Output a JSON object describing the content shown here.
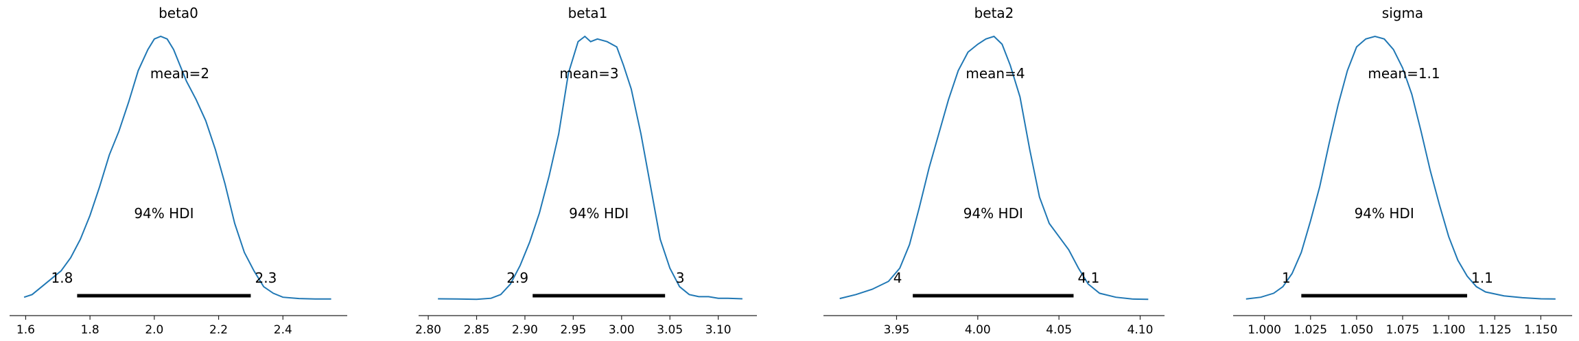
{
  "chart_data": [
    {
      "type": "line",
      "title": "beta0",
      "mean_label": "mean=2",
      "hdi_label": "94% HDI",
      "hdi_low_label": "1.8",
      "hdi_high_label": "2.3",
      "hdi": [
        1.76,
        2.3
      ],
      "xlim": [
        1.55,
        2.6
      ],
      "ticks": [
        1.6,
        1.8,
        2.0,
        2.2,
        2.4
      ],
      "tick_labels": [
        "1.6",
        "1.8",
        "2.0",
        "2.2",
        "2.4"
      ],
      "series": [
        {
          "x": [
            1.595,
            1.62,
            1.65,
            1.68,
            1.71,
            1.74,
            1.77,
            1.8,
            1.83,
            1.86,
            1.89,
            1.92,
            1.95,
            1.98,
            2.0,
            2.02,
            2.04,
            2.06,
            2.08,
            2.1,
            2.13,
            2.16,
            2.19,
            2.22,
            2.25,
            2.28,
            2.31,
            2.34,
            2.37,
            2.4,
            2.45,
            2.5,
            2.55
          ],
          "y": [
            0.01,
            0.02,
            0.05,
            0.08,
            0.11,
            0.16,
            0.23,
            0.32,
            0.43,
            0.55,
            0.64,
            0.75,
            0.87,
            0.95,
            0.99,
            1.0,
            0.99,
            0.95,
            0.89,
            0.83,
            0.76,
            0.68,
            0.57,
            0.44,
            0.29,
            0.18,
            0.11,
            0.05,
            0.025,
            0.01,
            0.005,
            0.003,
            0.003
          ]
        }
      ]
    },
    {
      "type": "line",
      "title": "beta1",
      "mean_label": "mean=3",
      "hdi_label": "94% HDI",
      "hdi_low_label": "2.9",
      "hdi_high_label": "3",
      "hdi": [
        2.908,
        3.045
      ],
      "xlim": [
        2.79,
        3.14
      ],
      "ticks": [
        2.8,
        2.85,
        2.9,
        2.95,
        3.0,
        3.05,
        3.1
      ],
      "tick_labels": [
        "2.80",
        "2.85",
        "2.90",
        "2.95",
        "3.00",
        "3.05",
        "3.10"
      ],
      "series": [
        {
          "x": [
            2.81,
            2.83,
            2.85,
            2.865,
            2.875,
            2.885,
            2.895,
            2.905,
            2.915,
            2.925,
            2.935,
            2.945,
            2.955,
            2.962,
            2.968,
            2.975,
            2.985,
            2.995,
            3.002,
            3.01,
            3.02,
            3.03,
            3.04,
            3.05,
            3.06,
            3.07,
            3.08,
            3.09,
            3.1,
            3.11,
            3.125
          ],
          "y": [
            0.004,
            0.003,
            0.002,
            0.006,
            0.02,
            0.06,
            0.13,
            0.22,
            0.33,
            0.47,
            0.63,
            0.86,
            0.98,
            1.0,
            0.98,
            0.99,
            0.98,
            0.96,
            0.89,
            0.8,
            0.63,
            0.43,
            0.23,
            0.12,
            0.05,
            0.02,
            0.012,
            0.012,
            0.006,
            0.006,
            0.004
          ]
        }
      ]
    },
    {
      "type": "line",
      "title": "beta2",
      "mean_label": "mean=4",
      "hdi_label": "94% HDI",
      "hdi_low_label": "4",
      "hdi_high_label": "4.1",
      "hdi": [
        3.96,
        4.059
      ],
      "xlim": [
        3.905,
        4.115
      ],
      "ticks": [
        3.95,
        4.0,
        4.05,
        4.1
      ],
      "tick_labels": [
        "3.95",
        "4.00",
        "4.05",
        "4.10"
      ],
      "series": [
        {
          "x": [
            3.915,
            3.925,
            3.935,
            3.945,
            3.952,
            3.958,
            3.964,
            3.97,
            3.976,
            3.982,
            3.988,
            3.994,
            4.0,
            4.005,
            4.01,
            4.015,
            4.02,
            4.026,
            4.032,
            4.038,
            4.044,
            4.05,
            4.056,
            4.062,
            4.068,
            4.075,
            4.085,
            4.095,
            4.105
          ],
          "y": [
            0.005,
            0.02,
            0.04,
            0.07,
            0.12,
            0.21,
            0.35,
            0.5,
            0.63,
            0.76,
            0.87,
            0.94,
            0.97,
            0.99,
            1.0,
            0.97,
            0.89,
            0.77,
            0.57,
            0.39,
            0.29,
            0.24,
            0.19,
            0.12,
            0.06,
            0.025,
            0.01,
            0.003,
            0.002
          ]
        }
      ]
    },
    {
      "type": "line",
      "title": "sigma",
      "mean_label": "mean=1.1",
      "hdi_label": "94% HDI",
      "hdi_low_label": "1",
      "hdi_high_label": "1.1",
      "hdi": [
        1.02,
        1.11
      ],
      "xlim": [
        0.983,
        1.167
      ],
      "ticks": [
        1.0,
        1.025,
        1.05,
        1.075,
        1.1,
        1.125,
        1.15
      ],
      "tick_labels": [
        "1.000",
        "1.025",
        "1.050",
        "1.075",
        "1.100",
        "1.125",
        "1.150"
      ],
      "series": [
        {
          "x": [
            0.99,
            0.998,
            1.005,
            1.01,
            1.015,
            1.02,
            1.025,
            1.03,
            1.035,
            1.04,
            1.045,
            1.05,
            1.055,
            1.06,
            1.065,
            1.07,
            1.075,
            1.08,
            1.085,
            1.09,
            1.095,
            1.1,
            1.105,
            1.11,
            1.115,
            1.12,
            1.13,
            1.14,
            1.15,
            1.158
          ],
          "y": [
            0.003,
            0.01,
            0.025,
            0.05,
            0.1,
            0.18,
            0.3,
            0.43,
            0.59,
            0.74,
            0.87,
            0.96,
            0.99,
            1.0,
            0.99,
            0.95,
            0.88,
            0.78,
            0.64,
            0.49,
            0.36,
            0.24,
            0.15,
            0.09,
            0.05,
            0.03,
            0.015,
            0.008,
            0.004,
            0.003
          ]
        }
      ]
    }
  ]
}
